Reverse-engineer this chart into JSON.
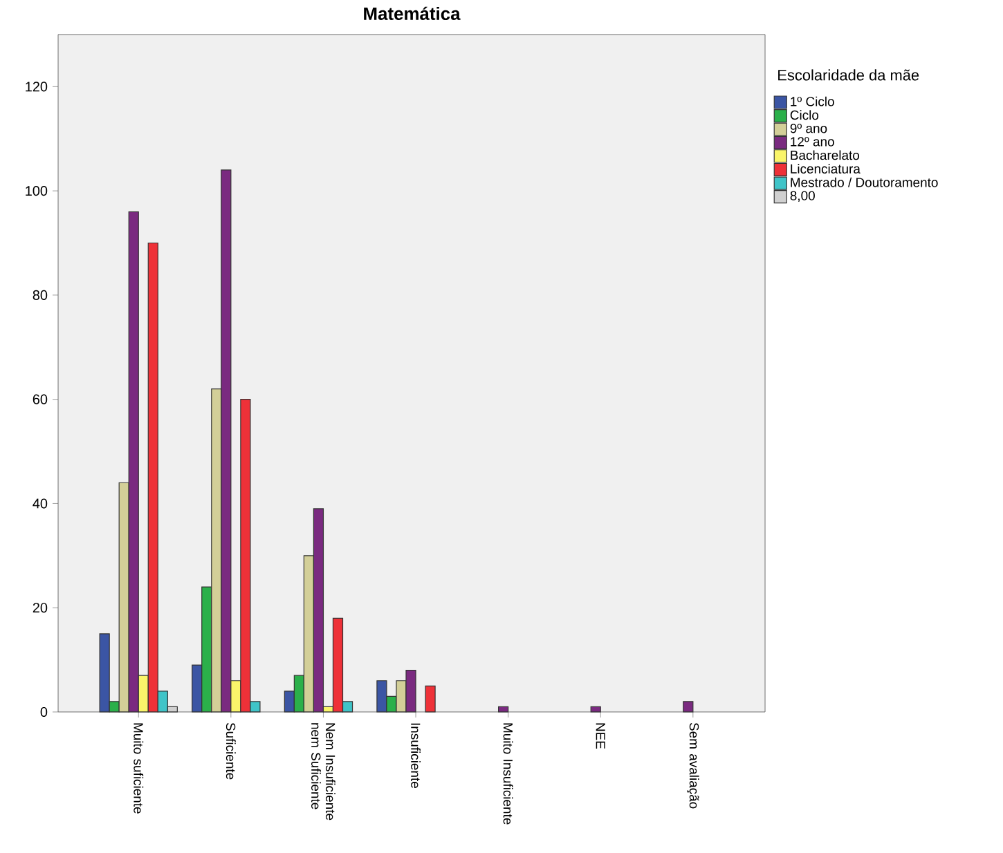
{
  "chart_data": {
    "type": "bar",
    "title": "Matemática",
    "legend_title": "Escolaridade da mãe",
    "legend": "right",
    "categories": [
      "Muito suficiente",
      "Suficiente",
      "Nem Insuficiente nem Suficiente",
      "Insuficiente",
      "Muito Insuficiente",
      "NEE",
      "Sem avaliação"
    ],
    "ylim": [
      0,
      130
    ],
    "yticks": [
      0,
      20,
      40,
      60,
      80,
      100,
      120
    ],
    "grid": false,
    "series": [
      {
        "name": "1º Ciclo",
        "color": "#3b55a4",
        "values": [
          15,
          9,
          4,
          6,
          null,
          null,
          null
        ]
      },
      {
        "name": "Ciclo",
        "color": "#2bb04a",
        "values": [
          2,
          24,
          7,
          3,
          null,
          null,
          null
        ]
      },
      {
        "name": "9º ano",
        "color": "#d3cf98",
        "values": [
          44,
          62,
          30,
          6,
          null,
          null,
          null
        ]
      },
      {
        "name": "12º ano",
        "color": "#7a2a80",
        "values": [
          96,
          104,
          39,
          8,
          1,
          1,
          2
        ]
      },
      {
        "name": "Bacharelato",
        "color": "#faf56a",
        "values": [
          7,
          6,
          1,
          null,
          null,
          null,
          null
        ]
      },
      {
        "name": "Licenciatura",
        "color": "#ee3138",
        "values": [
          90,
          60,
          18,
          5,
          null,
          null,
          null
        ]
      },
      {
        "name": "Mestrado / Doutoramento",
        "color": "#3fc4c8",
        "values": [
          4,
          2,
          2,
          null,
          null,
          null,
          null
        ]
      },
      {
        "name": "8,00",
        "color": "#d0d0d0",
        "values": [
          1,
          null,
          null,
          null,
          null,
          null,
          null
        ]
      }
    ]
  }
}
